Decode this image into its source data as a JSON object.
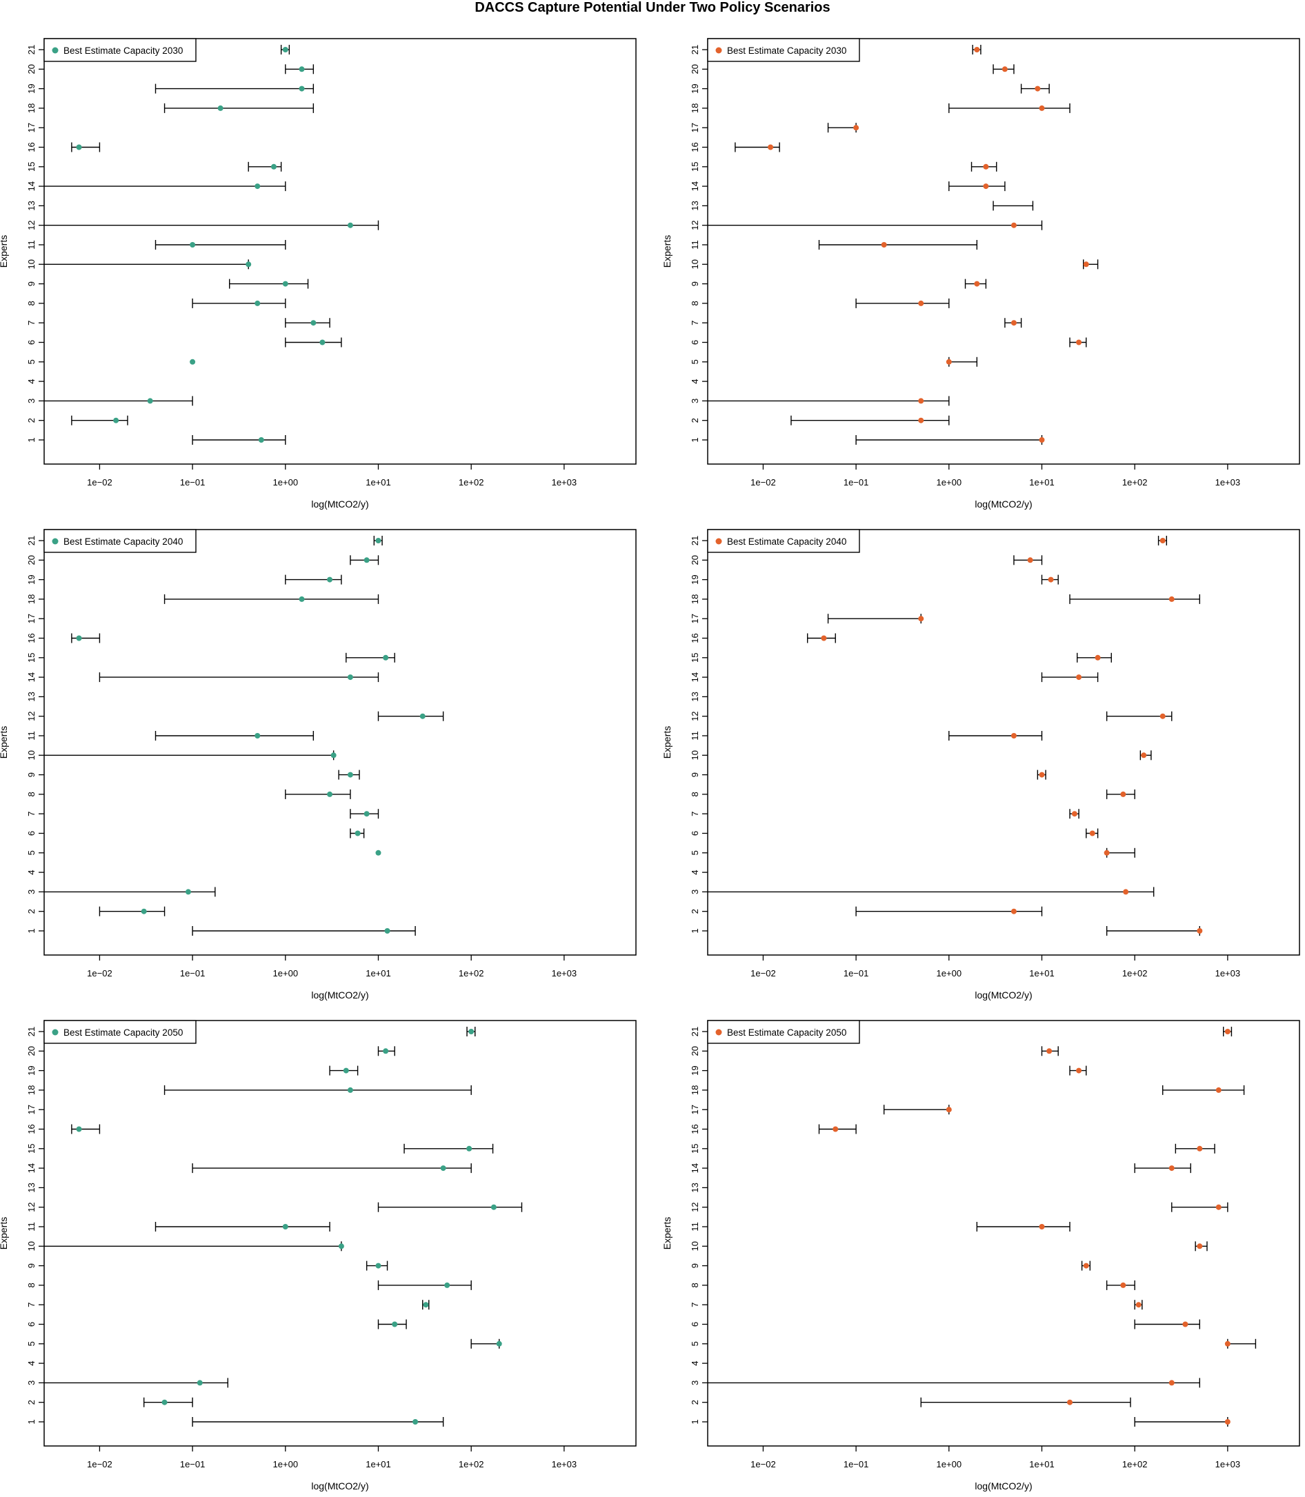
{
  "title": "DACCS Capture Potential Under Two Policy Scenarios",
  "colors": {
    "green": "#3aa186",
    "orange": "#e3622b"
  },
  "chart_data": [
    {
      "type": "scatter",
      "id": "p2030a",
      "legend": "Best Estimate Capacity 2030",
      "color": "green",
      "xlabel": "log(MtCO2/y)",
      "ylabel": "Experts",
      "xlim": [
        0.003,
        5000
      ],
      "xticks": [
        "1e−02",
        "1e−01",
        "1e+00",
        "1e+01",
        "1e+02",
        "1e+03"
      ],
      "yticks": [
        "1",
        "2",
        "3",
        "4",
        "5",
        "6",
        "7",
        "8",
        "9",
        "10",
        "11",
        "12",
        "13",
        "14",
        "15",
        "16",
        "17",
        "18",
        "19",
        "20",
        "21"
      ],
      "points": [
        {
          "expert": 1,
          "est": 0.55,
          "low": 0.1,
          "high": 1
        },
        {
          "expert": 2,
          "est": 0.015,
          "low": 0.005,
          "high": 0.02
        },
        {
          "expert": 3,
          "est": 0.035,
          "low": 0.001,
          "high": 0.1
        },
        {
          "expert": 5,
          "est": 0.1,
          "low": 0.1,
          "high": 0.1
        },
        {
          "expert": 6,
          "est": 2.5,
          "low": 1,
          "high": 4
        },
        {
          "expert": 7,
          "est": 2,
          "low": 1,
          "high": 3
        },
        {
          "expert": 8,
          "est": 0.5,
          "low": 0.1,
          "high": 1
        },
        {
          "expert": 9,
          "est": 1,
          "low": 0.25,
          "high": 1.75
        },
        {
          "expert": 10,
          "est": 0.4,
          "low": 0.001,
          "high": 0.4
        },
        {
          "expert": 11,
          "est": 0.1,
          "low": 0.04,
          "high": 1
        },
        {
          "expert": 12,
          "est": 5,
          "low": 0.001,
          "high": 10
        },
        {
          "expert": 14,
          "est": 0.5,
          "low": 0.001,
          "high": 1
        },
        {
          "expert": 15,
          "est": 0.75,
          "low": 0.4,
          "high": 0.9
        },
        {
          "expert": 16,
          "est": 0.006,
          "low": 0.005,
          "high": 0.01
        },
        {
          "expert": 18,
          "est": 0.2,
          "low": 0.05,
          "high": 2
        },
        {
          "expert": 19,
          "est": 1.5,
          "low": 0.04,
          "high": 2
        },
        {
          "expert": 20,
          "est": 1.5,
          "low": 1,
          "high": 2
        },
        {
          "expert": 21,
          "est": 1,
          "low": 0.9,
          "high": 1.1
        }
      ]
    },
    {
      "type": "scatter",
      "id": "p2030b",
      "legend": "Best Estimate Capacity 2030",
      "color": "orange",
      "xlabel": "log(MtCO2/y)",
      "ylabel": "Experts",
      "xlim": [
        0.003,
        5000
      ],
      "xticks": [
        "1e−02",
        "1e−01",
        "1e+00",
        "1e+01",
        "1e+02",
        "1e+03"
      ],
      "yticks": [
        "1",
        "2",
        "3",
        "4",
        "5",
        "6",
        "7",
        "8",
        "9",
        "10",
        "11",
        "12",
        "13",
        "14",
        "15",
        "16",
        "17",
        "18",
        "19",
        "20",
        "21"
      ],
      "points": [
        {
          "expert": 1,
          "est": 10,
          "low": 0.1,
          "high": 10
        },
        {
          "expert": 2,
          "est": 0.5,
          "low": 0.02,
          "high": 1
        },
        {
          "expert": 3,
          "est": 0.5,
          "low": 0.001,
          "high": 1
        },
        {
          "expert": 5,
          "est": 1,
          "low": 1,
          "high": 2
        },
        {
          "expert": 6,
          "est": 25,
          "low": 20,
          "high": 30
        },
        {
          "expert": 7,
          "est": 5,
          "low": 4,
          "high": 6
        },
        {
          "expert": 8,
          "est": 0.5,
          "low": 0.1,
          "high": 1
        },
        {
          "expert": 9,
          "est": 2,
          "low": 1.5,
          "high": 2.5
        },
        {
          "expert": 10,
          "est": 30,
          "low": 28,
          "high": 40
        },
        {
          "expert": 11,
          "est": 0.2,
          "low": 0.04,
          "high": 2
        },
        {
          "expert": 12,
          "est": 5,
          "low": 0.001,
          "high": 10
        },
        {
          "expert": 13,
          "est": null,
          "low": 3,
          "high": 8
        },
        {
          "expert": 14,
          "est": 2.5,
          "low": 1,
          "high": 4
        },
        {
          "expert": 15,
          "est": 2.5,
          "low": 1.75,
          "high": 3.25
        },
        {
          "expert": 16,
          "est": 0.012,
          "low": 0.005,
          "high": 0.015
        },
        {
          "expert": 17,
          "est": 0.1,
          "low": 0.05,
          "high": 0.1
        },
        {
          "expert": 18,
          "est": 10,
          "low": 1,
          "high": 20
        },
        {
          "expert": 19,
          "est": 9,
          "low": 6,
          "high": 12
        },
        {
          "expert": 20,
          "est": 4,
          "low": 3,
          "high": 5
        },
        {
          "expert": 21,
          "est": 2,
          "low": 1.8,
          "high": 2.2
        }
      ]
    },
    {
      "type": "scatter",
      "id": "p2040a",
      "legend": "Best Estimate Capacity 2040",
      "color": "green",
      "xlabel": "log(MtCO2/y)",
      "ylabel": "Experts",
      "xlim": [
        0.003,
        5000
      ],
      "xticks": [
        "1e−02",
        "1e−01",
        "1e+00",
        "1e+01",
        "1e+02",
        "1e+03"
      ],
      "yticks": [
        "1",
        "2",
        "3",
        "4",
        "5",
        "6",
        "7",
        "8",
        "9",
        "10",
        "11",
        "12",
        "13",
        "14",
        "15",
        "16",
        "17",
        "18",
        "19",
        "20",
        "21"
      ],
      "points": [
        {
          "expert": 1,
          "est": 12.5,
          "low": 0.1,
          "high": 25
        },
        {
          "expert": 2,
          "est": 0.03,
          "low": 0.01,
          "high": 0.05
        },
        {
          "expert": 3,
          "est": 0.09,
          "low": 0.001,
          "high": 0.175
        },
        {
          "expert": 5,
          "est": 10,
          "low": 10,
          "high": 10
        },
        {
          "expert": 6,
          "est": 6,
          "low": 5,
          "high": 7
        },
        {
          "expert": 7,
          "est": 7.5,
          "low": 5,
          "high": 10
        },
        {
          "expert": 8,
          "est": 3,
          "low": 1,
          "high": 5
        },
        {
          "expert": 9,
          "est": 5,
          "low": 3.75,
          "high": 6.25
        },
        {
          "expert": 10,
          "est": 3.3,
          "low": 0.001,
          "high": 3.3
        },
        {
          "expert": 11,
          "est": 0.5,
          "low": 0.04,
          "high": 2
        },
        {
          "expert": 12,
          "est": 30,
          "low": 10,
          "high": 50
        },
        {
          "expert": 14,
          "est": 5,
          "low": 0.01,
          "high": 10
        },
        {
          "expert": 15,
          "est": 12,
          "low": 4.5,
          "high": 15
        },
        {
          "expert": 16,
          "est": 0.006,
          "low": 0.005,
          "high": 0.01
        },
        {
          "expert": 18,
          "est": 1.5,
          "low": 0.05,
          "high": 10
        },
        {
          "expert": 19,
          "est": 3,
          "low": 1,
          "high": 4
        },
        {
          "expert": 20,
          "est": 7.5,
          "low": 5,
          "high": 10
        },
        {
          "expert": 21,
          "est": 10,
          "low": 9,
          "high": 11
        }
      ]
    },
    {
      "type": "scatter",
      "id": "p2040b",
      "legend": "Best Estimate Capacity 2040",
      "color": "orange",
      "xlabel": "log(MtCO2/y)",
      "ylabel": "Experts",
      "xlim": [
        0.003,
        5000
      ],
      "xticks": [
        "1e−02",
        "1e−01",
        "1e+00",
        "1e+01",
        "1e+02",
        "1e+03"
      ],
      "yticks": [
        "1",
        "2",
        "3",
        "4",
        "5",
        "6",
        "7",
        "8",
        "9",
        "10",
        "11",
        "12",
        "13",
        "14",
        "15",
        "16",
        "17",
        "18",
        "19",
        "20",
        "21"
      ],
      "points": [
        {
          "expert": 1,
          "est": 500,
          "low": 50,
          "high": 500
        },
        {
          "expert": 2,
          "est": 5,
          "low": 0.1,
          "high": 10
        },
        {
          "expert": 3,
          "est": 80,
          "low": 0.001,
          "high": 160
        },
        {
          "expert": 5,
          "est": 50,
          "low": 50,
          "high": 100
        },
        {
          "expert": 6,
          "est": 35,
          "low": 30,
          "high": 40
        },
        {
          "expert": 7,
          "est": 22.5,
          "low": 20,
          "high": 25
        },
        {
          "expert": 8,
          "est": 75,
          "low": 50,
          "high": 100
        },
        {
          "expert": 9,
          "est": 10,
          "low": 9,
          "high": 11
        },
        {
          "expert": 10,
          "est": 125,
          "low": 115,
          "high": 150
        },
        {
          "expert": 11,
          "est": 5,
          "low": 1,
          "high": 10
        },
        {
          "expert": 12,
          "est": 200,
          "low": 50,
          "high": 250
        },
        {
          "expert": 14,
          "est": 25,
          "low": 10,
          "high": 40
        },
        {
          "expert": 15,
          "est": 40,
          "low": 24,
          "high": 56
        },
        {
          "expert": 16,
          "est": 0.045,
          "low": 0.03,
          "high": 0.06
        },
        {
          "expert": 17,
          "est": 0.5,
          "low": 0.05,
          "high": 0.5
        },
        {
          "expert": 18,
          "est": 250,
          "low": 20,
          "high": 500
        },
        {
          "expert": 19,
          "est": 12.5,
          "low": 10,
          "high": 15
        },
        {
          "expert": 20,
          "est": 7.5,
          "low": 5,
          "high": 10
        },
        {
          "expert": 21,
          "est": 200,
          "low": 180,
          "high": 220
        }
      ]
    },
    {
      "type": "scatter",
      "id": "p2050a",
      "legend": "Best Estimate Capacity 2050",
      "color": "green",
      "xlabel": "log(MtCO2/y)",
      "ylabel": "Experts",
      "xlim": [
        0.003,
        5000
      ],
      "xticks": [
        "1e−02",
        "1e−01",
        "1e+00",
        "1e+01",
        "1e+02",
        "1e+03"
      ],
      "yticks": [
        "1",
        "2",
        "3",
        "4",
        "5",
        "6",
        "7",
        "8",
        "9",
        "10",
        "11",
        "12",
        "13",
        "14",
        "15",
        "16",
        "17",
        "18",
        "19",
        "20",
        "21"
      ],
      "points": [
        {
          "expert": 1,
          "est": 25,
          "low": 0.1,
          "high": 50
        },
        {
          "expert": 2,
          "est": 0.05,
          "low": 0.03,
          "high": 0.1
        },
        {
          "expert": 3,
          "est": 0.12,
          "low": 0.001,
          "high": 0.24
        },
        {
          "expert": 5,
          "est": 200,
          "low": 100,
          "high": 200
        },
        {
          "expert": 6,
          "est": 15,
          "low": 10,
          "high": 20
        },
        {
          "expert": 7,
          "est": 32.5,
          "low": 30,
          "high": 35
        },
        {
          "expert": 8,
          "est": 55,
          "low": 10,
          "high": 100
        },
        {
          "expert": 9,
          "est": 10,
          "low": 7.5,
          "high": 12.5
        },
        {
          "expert": 10,
          "est": 4,
          "low": 0.001,
          "high": 4
        },
        {
          "expert": 11,
          "est": 1,
          "low": 0.04,
          "high": 3
        },
        {
          "expert": 12,
          "est": 175,
          "low": 10,
          "high": 350
        },
        {
          "expert": 14,
          "est": 50,
          "low": 0.1,
          "high": 100
        },
        {
          "expert": 15,
          "est": 95,
          "low": 19,
          "high": 171
        },
        {
          "expert": 16,
          "est": 0.006,
          "low": 0.005,
          "high": 0.01
        },
        {
          "expert": 18,
          "est": 5,
          "low": 0.05,
          "high": 100
        },
        {
          "expert": 19,
          "est": 4.5,
          "low": 3,
          "high": 6
        },
        {
          "expert": 20,
          "est": 12,
          "low": 10,
          "high": 15
        },
        {
          "expert": 21,
          "est": 100,
          "low": 90,
          "high": 110
        }
      ]
    },
    {
      "type": "scatter",
      "id": "p2050b",
      "legend": "Best Estimate Capacity 2050",
      "color": "orange",
      "xlabel": "log(MtCO2/y)",
      "ylabel": "Experts",
      "xlim": [
        0.003,
        5000
      ],
      "xticks": [
        "1e−02",
        "1e−01",
        "1e+00",
        "1e+01",
        "1e+02",
        "1e+03"
      ],
      "yticks": [
        "1",
        "2",
        "3",
        "4",
        "5",
        "6",
        "7",
        "8",
        "9",
        "10",
        "11",
        "12",
        "13",
        "14",
        "15",
        "16",
        "17",
        "18",
        "19",
        "20",
        "21"
      ],
      "points": [
        {
          "expert": 1,
          "est": 1000,
          "low": 100,
          "high": 1000
        },
        {
          "expert": 2,
          "est": 20,
          "low": 0.5,
          "high": 90
        },
        {
          "expert": 3,
          "est": 250,
          "low": 0.001,
          "high": 500
        },
        {
          "expert": 5,
          "est": 1000,
          "low": 1000,
          "high": 2000
        },
        {
          "expert": 6,
          "est": 350,
          "low": 100,
          "high": 500
        },
        {
          "expert": 7,
          "est": 110,
          "low": 100,
          "high": 120
        },
        {
          "expert": 8,
          "est": 75,
          "low": 50,
          "high": 100
        },
        {
          "expert": 9,
          "est": 30,
          "low": 27,
          "high": 33
        },
        {
          "expert": 10,
          "est": 500,
          "low": 450,
          "high": 600
        },
        {
          "expert": 11,
          "est": 10,
          "low": 2,
          "high": 20
        },
        {
          "expert": 12,
          "est": 800,
          "low": 250,
          "high": 1000
        },
        {
          "expert": 14,
          "est": 250,
          "low": 100,
          "high": 400
        },
        {
          "expert": 15,
          "est": 500,
          "low": 275,
          "high": 725
        },
        {
          "expert": 16,
          "est": 0.06,
          "low": 0.04,
          "high": 0.1
        },
        {
          "expert": 17,
          "est": 1,
          "low": 0.2,
          "high": 1
        },
        {
          "expert": 18,
          "est": 800,
          "low": 200,
          "high": 1500
        },
        {
          "expert": 19,
          "est": 25,
          "low": 20,
          "high": 30
        },
        {
          "expert": 20,
          "est": 12,
          "low": 10,
          "high": 15
        },
        {
          "expert": 21,
          "est": 1000,
          "low": 900,
          "high": 1100
        }
      ]
    }
  ]
}
